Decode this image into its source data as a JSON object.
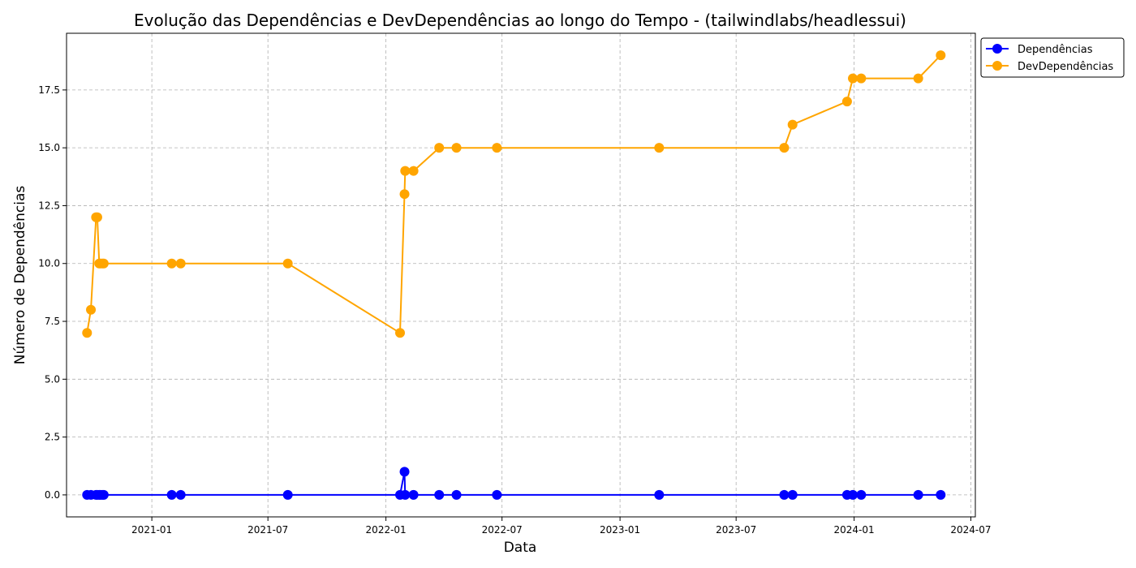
{
  "chart_data": {
    "type": "line",
    "title": "Evolução das Dependências e DevDependências ao longo do Tempo - (tailwindlabs/headlessui)",
    "xlabel": "Data",
    "ylabel": "Número de Dependências",
    "xlim": [
      "2020-08-21",
      "2024-07-08"
    ],
    "ylim": [
      -0.95,
      19.95
    ],
    "grid": true,
    "legend_position": "outside-top-right",
    "x_ticks": [
      "2021-01",
      "2021-07",
      "2022-01",
      "2022-07",
      "2023-01",
      "2023-07",
      "2024-01",
      "2024-07"
    ],
    "x_tick_dates": [
      "2021-01-01",
      "2021-07-01",
      "2022-01-01",
      "2022-07-01",
      "2023-01-01",
      "2023-07-01",
      "2024-01-01",
      "2024-07-01"
    ],
    "y_ticks": [
      "0.0",
      "2.5",
      "5.0",
      "7.5",
      "10.0",
      "12.5",
      "15.0",
      "17.5"
    ],
    "y_tick_values": [
      0,
      2.5,
      5,
      7.5,
      10,
      12.5,
      15,
      17.5
    ],
    "x": [
      "2020-09-22",
      "2020-09-28",
      "2020-10-06",
      "2020-10-08",
      "2020-10-11",
      "2020-10-13",
      "2020-10-16",
      "2020-10-18",
      "2021-02-01",
      "2021-02-15",
      "2021-08-01",
      "2022-01-23",
      "2022-01-30",
      "2022-01-31",
      "2022-02-13",
      "2022-03-25",
      "2022-04-21",
      "2022-06-23",
      "2023-03-03",
      "2023-09-14",
      "2023-09-27",
      "2023-12-21",
      "2023-12-30",
      "2024-01-12",
      "2024-04-10",
      "2024-05-15"
    ],
    "series": [
      {
        "name": "Dependências",
        "color": "#0000ff",
        "values": [
          0,
          0,
          0,
          0,
          0,
          0,
          0,
          0,
          0,
          0,
          0,
          0,
          1,
          0,
          0,
          0,
          0,
          0,
          0,
          0,
          0,
          0,
          0,
          0,
          0,
          0
        ]
      },
      {
        "name": "DevDependências",
        "color": "#ffa500",
        "values": [
          7,
          8,
          12,
          12,
          10,
          10,
          10,
          10,
          10,
          10,
          10,
          7,
          13,
          14,
          14,
          15,
          15,
          15,
          15,
          15,
          16,
          17,
          18,
          18,
          18,
          19
        ]
      }
    ]
  }
}
